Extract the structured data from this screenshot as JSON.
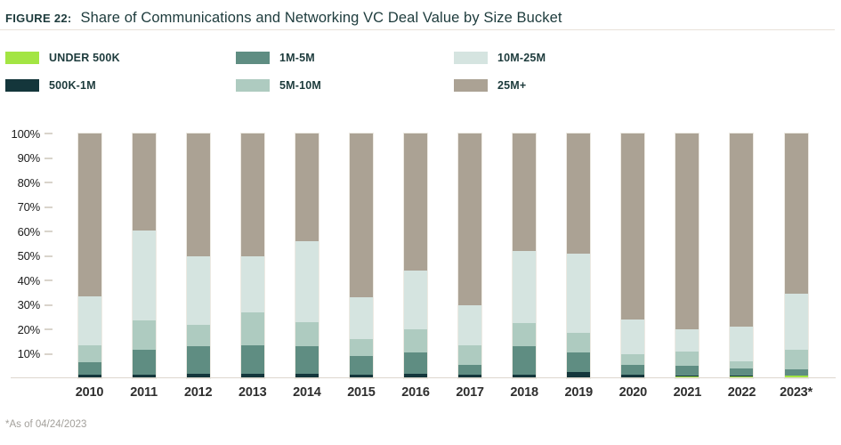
{
  "header": {
    "figure_label": "FIGURE 22:",
    "title": "Share of Communications and Networking VC Deal Value by Size Bucket"
  },
  "legend": {
    "items": [
      {
        "label": "UNDER 500K",
        "color": "#a3e543"
      },
      {
        "label": "500K-1M",
        "color": "#14363b"
      },
      {
        "label": "1M-5M",
        "color": "#5f8d82"
      },
      {
        "label": "5M-10M",
        "color": "#aecbc0"
      },
      {
        "label": "10M-25M",
        "color": "#d5e4e0"
      },
      {
        "label": "25M+",
        "color": "#aba294"
      }
    ]
  },
  "chart_data": {
    "type": "bar",
    "stacked": true,
    "unit": "percent",
    "title": "Share of Communications and Networking VC Deal Value by Size Bucket",
    "xlabel": "",
    "ylabel": "",
    "ylim": [
      0,
      100
    ],
    "grid": false,
    "legend_position": "top",
    "yticks": [
      "10%",
      "20%",
      "30%",
      "40%",
      "50%",
      "60%",
      "70%",
      "80%",
      "90%",
      "100%"
    ],
    "categories": [
      "2010",
      "2011",
      "2012",
      "2013",
      "2014",
      "2015",
      "2016",
      "2017",
      "2018",
      "2019",
      "2020",
      "2021",
      "2022",
      "2023*"
    ],
    "series": [
      {
        "name": "UNDER 500K",
        "color": "#a3e543",
        "values": [
          0.5,
          0.5,
          0.5,
          0.5,
          0.5,
          0.5,
          0.5,
          0.5,
          0.5,
          0.5,
          0.5,
          0.7,
          0.8,
          1.0
        ]
      },
      {
        "name": "500K-1M",
        "color": "#14363b",
        "values": [
          1.0,
          1.0,
          1.5,
          1.5,
          1.5,
          1.0,
          1.5,
          1.0,
          1.0,
          2.0,
          1.0,
          0.3,
          0.2,
          0.2
        ]
      },
      {
        "name": "1M-5M",
        "color": "#5f8d82",
        "values": [
          5.0,
          10.0,
          11.0,
          11.5,
          11.0,
          7.5,
          8.5,
          4.0,
          11.5,
          8.0,
          4.0,
          4.0,
          3.0,
          2.3
        ]
      },
      {
        "name": "5M-10M",
        "color": "#aecbc0",
        "values": [
          7.0,
          12.0,
          9.0,
          13.5,
          10.0,
          7.0,
          9.5,
          8.0,
          9.5,
          8.0,
          4.5,
          6.0,
          3.0,
          8.0
        ]
      },
      {
        "name": "10M-25M",
        "color": "#d5e4e0",
        "values": [
          20.0,
          37.0,
          28.0,
          23.0,
          33.0,
          17.0,
          24.0,
          16.5,
          29.5,
          32.5,
          14.0,
          9.0,
          14.0,
          23.0
        ]
      },
      {
        "name": "25M+",
        "color": "#aba294",
        "values": [
          66.5,
          39.5,
          50.0,
          50.0,
          44.0,
          67.0,
          56.0,
          70.0,
          48.0,
          49.0,
          76.0,
          80.0,
          79.0,
          65.5
        ]
      }
    ]
  },
  "footnote": "*As of 04/24/2023"
}
